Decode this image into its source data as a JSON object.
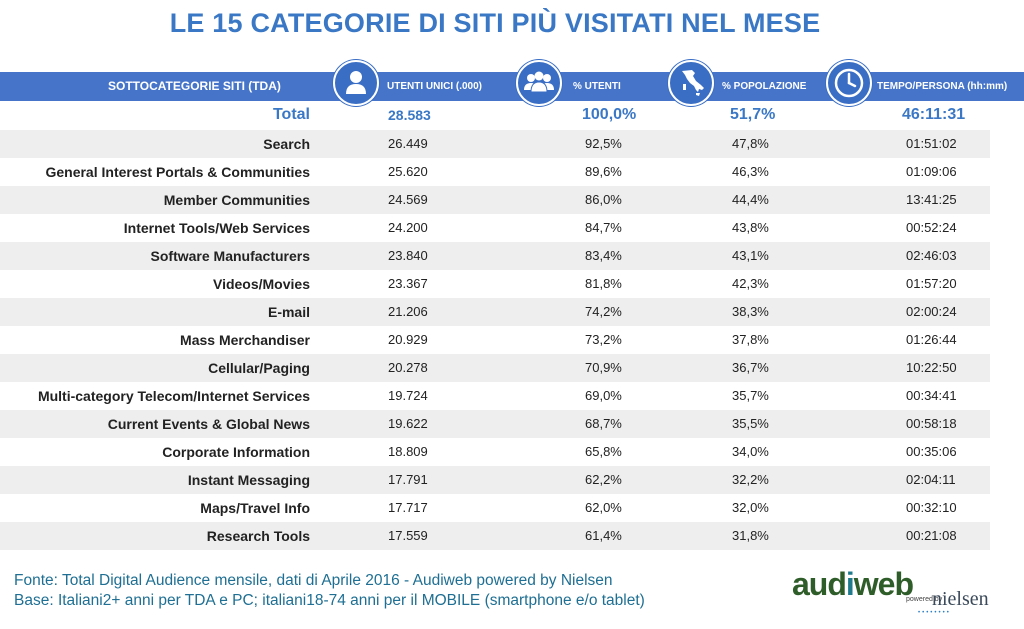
{
  "title": "LE 15 CATEGORIE DI SITI PIÙ VISITATI NEL MESE",
  "header": {
    "subcategories": "SOTTOCATEGORIE SITI  (TDA)",
    "unique_users": "UTENTI UNICI (.000)",
    "pct_users": "% UTENTI",
    "pct_population": "% POPOLAZIONE",
    "time_per_person": "TEMPO/PERSONA (hh:mm)",
    "icons": [
      "person-icon",
      "group-icon",
      "italy-map-icon",
      "clock-icon"
    ]
  },
  "total": {
    "label": "Total",
    "users": "28.583",
    "pct_users": "100,0%",
    "pct_population": "51,7%",
    "time": "46:11:31"
  },
  "rows": [
    {
      "label": "Search",
      "users": "26.449",
      "pct_users": "92,5%",
      "pct_population": "47,8%",
      "time": "01:51:02"
    },
    {
      "label": "General Interest Portals & Communities",
      "users": "25.620",
      "pct_users": "89,6%",
      "pct_population": "46,3%",
      "time": "01:09:06"
    },
    {
      "label": "Member Communities",
      "users": "24.569",
      "pct_users": "86,0%",
      "pct_population": "44,4%",
      "time": "13:41:25"
    },
    {
      "label": "Internet Tools/Web Services",
      "users": "24.200",
      "pct_users": "84,7%",
      "pct_population": "43,8%",
      "time": "00:52:24"
    },
    {
      "label": "Software Manufacturers",
      "users": "23.840",
      "pct_users": "83,4%",
      "pct_population": "43,1%",
      "time": "02:46:03"
    },
    {
      "label": "Videos/Movies",
      "users": "23.367",
      "pct_users": "81,8%",
      "pct_population": "42,3%",
      "time": "01:57:20"
    },
    {
      "label": "E-mail",
      "users": "21.206",
      "pct_users": "74,2%",
      "pct_population": "38,3%",
      "time": "02:00:24"
    },
    {
      "label": "Mass Merchandiser",
      "users": "20.929",
      "pct_users": "73,2%",
      "pct_population": "37,8%",
      "time": "01:26:44"
    },
    {
      "label": "Cellular/Paging",
      "users": "20.278",
      "pct_users": "70,9%",
      "pct_population": "36,7%",
      "time": "10:22:50"
    },
    {
      "label": "Multi-category Telecom/Internet Services",
      "users": "19.724",
      "pct_users": "69,0%",
      "pct_population": "35,7%",
      "time": "00:34:41"
    },
    {
      "label": "Current Events & Global News",
      "users": "19.622",
      "pct_users": "68,7%",
      "pct_population": "35,5%",
      "time": "00:58:18"
    },
    {
      "label": "Corporate Information",
      "users": "18.809",
      "pct_users": "65,8%",
      "pct_population": "34,0%",
      "time": "00:35:06"
    },
    {
      "label": "Instant Messaging",
      "users": "17.791",
      "pct_users": "62,2%",
      "pct_population": "32,2%",
      "time": "02:04:11"
    },
    {
      "label": "Maps/Travel Info",
      "users": "17.717",
      "pct_users": "62,0%",
      "pct_population": "32,0%",
      "time": "00:32:10"
    },
    {
      "label": "Research Tools",
      "users": "17.559",
      "pct_users": "61,4%",
      "pct_population": "31,8%",
      "time": "00:21:08"
    }
  ],
  "footer": {
    "line1": "Fonte: Total Digital Audience mensile, dati di Aprile 2016 - Audiweb powered by Nielsen",
    "line2": "Base: Italiani2+ anni per TDA e PC; italiani18-74 anni per il MOBILE (smartphone e/o tablet)"
  },
  "logo": {
    "main_a": "aud",
    "main_i": "i",
    "main_b": "web",
    "sub": "powered by",
    "nielsen": "nielsen"
  },
  "colors": {
    "title": "#3a78c6",
    "header_bg": "#4574c9",
    "row_shade": "#eeeeee",
    "footer_text": "#1e6f93"
  }
}
